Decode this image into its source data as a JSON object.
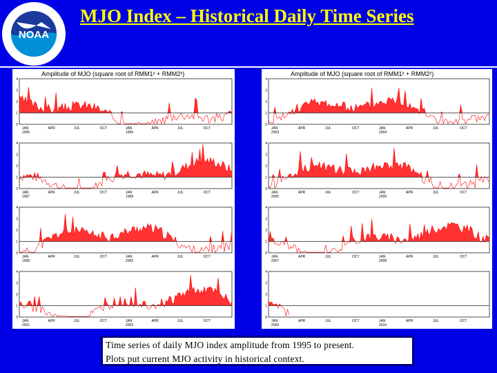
{
  "title": "MJO Index – Historical Daily Time Series",
  "logo": {
    "text": "NOAA",
    "ring_text": "NATIONAL OCEANIC AND ATMOSPHERIC ADMINISTRATION · U.S. DEPARTMENT OF COMMERCE"
  },
  "caption": {
    "line1": "Time series of daily MJO index amplitude from 1995 to present.",
    "line2": "Plots put current MJO activity in historical context."
  },
  "colors": {
    "background": "#0000e6",
    "title": "#ffff00",
    "fill": "#ff3333",
    "line": "#ff0000",
    "reference": "#222222"
  },
  "chart_data": [
    {
      "type": "area",
      "title": "Amplitude of MJO (square root of RMM1² + RMM2²)",
      "rows": [
        {
          "yticks": [
            "4",
            "3",
            "2",
            "1",
            "0"
          ],
          "xticks": [
            "JAN",
            "APR",
            "JUL",
            "OCT",
            "JAN",
            "APR",
            "JUL",
            "OCT"
          ],
          "years": [
            "1995",
            "",
            "",
            "",
            "1996",
            "",
            "",
            ""
          ],
          "seed": 3
        },
        {
          "yticks": [
            "4",
            "3",
            "2",
            "1",
            "0"
          ],
          "xticks": [
            "JAN",
            "APR",
            "JUL",
            "OCT",
            "JAN",
            "APR",
            "JUL",
            "OCT"
          ],
          "years": [
            "1997",
            "",
            "",
            "",
            "1998",
            "",
            "",
            ""
          ],
          "seed": 7
        },
        {
          "yticks": [
            "4",
            "3",
            "2",
            "1",
            "0"
          ],
          "xticks": [
            "JAN",
            "APR",
            "JUL",
            "OCT",
            "JAN",
            "APR",
            "JUL",
            "OCT"
          ],
          "years": [
            "1999",
            "",
            "",
            "",
            "2000",
            "",
            "",
            ""
          ],
          "seed": 11
        },
        {
          "yticks": [
            "4",
            "3",
            "2",
            "1",
            "0"
          ],
          "xticks": [
            "JAN",
            "APR",
            "JUL",
            "OCT",
            "JAN",
            "APR",
            "JUL",
            "OCT"
          ],
          "years": [
            "2001",
            "",
            "",
            "",
            "2002",
            "",
            "",
            ""
          ],
          "seed": 19
        }
      ],
      "ylim": [
        0,
        4
      ],
      "reference_line": 1
    },
    {
      "type": "area",
      "title": "Amplitude of MJO (square root of RMM1² + RMM2²)",
      "rows": [
        {
          "yticks": [
            "4",
            "3",
            "2",
            "1",
            "0"
          ],
          "xticks": [
            "JAN",
            "APR",
            "JUL",
            "OCT",
            "JAN",
            "APR",
            "JUL",
            "OCT"
          ],
          "years": [
            "2003",
            "",
            "",
            "",
            "2004",
            "",
            "",
            ""
          ],
          "seed": 23
        },
        {
          "yticks": [
            "4",
            "3",
            "2",
            "1",
            "0"
          ],
          "xticks": [
            "JAN",
            "APR",
            "JUL",
            "OCT",
            "JAN",
            "APR",
            "JUL",
            "OCT"
          ],
          "years": [
            "2005",
            "",
            "",
            "",
            "2006",
            "",
            "",
            ""
          ],
          "seed": 29
        },
        {
          "yticks": [
            "4",
            "3",
            "2",
            "1",
            "0"
          ],
          "xticks": [
            "JAN",
            "APR",
            "JUL",
            "OCT",
            "JAN",
            "APR",
            "JUL",
            "OCT"
          ],
          "years": [
            "2007",
            "",
            "",
            "",
            "2008",
            "",
            "",
            ""
          ],
          "seed": 31
        },
        {
          "yticks": [
            "4",
            "3",
            "2",
            "1",
            "0"
          ],
          "xticks": [
            "JAN",
            "APR",
            "JUL",
            "OCT",
            "JAN",
            "APR",
            "JUL",
            "OCT"
          ],
          "years": [
            "2009",
            "",
            "",
            "",
            "2010",
            "",
            "",
            ""
          ],
          "seed": 37,
          "partial": 0.1
        }
      ],
      "ylim": [
        0,
        4
      ],
      "reference_line": 1
    }
  ]
}
